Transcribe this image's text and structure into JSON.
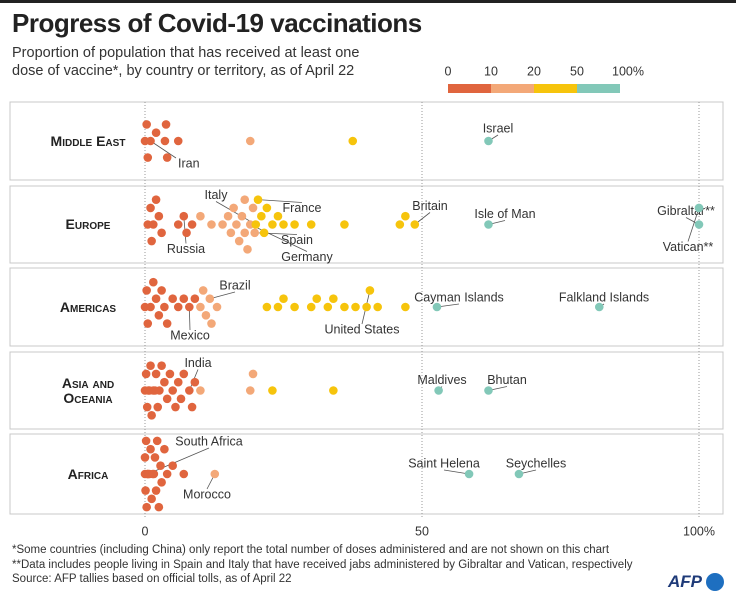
{
  "chart_data": {
    "type": "beeswarm",
    "title": "Progress of Covid-19 vaccinations",
    "subtitle": "Proportion of population that has received at least one dose of vaccine*, by country or territory, as of April 22",
    "xlim": [
      0,
      100
    ],
    "xticks": [
      0,
      50,
      {
        "value": 100,
        "label": "100%"
      }
    ],
    "grid": true,
    "color_scale": {
      "ticks": [
        0,
        10,
        20,
        50,
        {
          "value": 100,
          "label": "100%"
        }
      ],
      "colors": [
        "#e0653e",
        "#f3a878",
        "#f6c40c",
        "#82c8b8"
      ]
    },
    "groups": [
      {
        "name": "Middle East",
        "points": [
          {
            "value": 0
          },
          {
            "value": 0.5
          },
          {
            "value": 1,
            "label": "Iran"
          },
          {
            "value": 0.3
          },
          {
            "value": 2
          },
          {
            "value": 3.6
          },
          {
            "value": 4
          },
          {
            "value": 3.8
          },
          {
            "value": 6
          },
          {
            "value": 19
          },
          {
            "value": 37.5
          },
          {
            "value": 62,
            "label": "Israel"
          }
        ]
      },
      {
        "name": "Europe",
        "points": [
          {
            "value": 0.5
          },
          {
            "value": 1
          },
          {
            "value": 1.2
          },
          {
            "value": 1.5
          },
          {
            "value": 2
          },
          {
            "value": 2.5
          },
          {
            "value": 3
          },
          {
            "value": 6
          },
          {
            "value": 7,
            "label": "Russia"
          },
          {
            "value": 7.5
          },
          {
            "value": 8.5
          },
          {
            "value": 10
          },
          {
            "value": 12
          },
          {
            "value": 14
          },
          {
            "value": 15
          },
          {
            "value": 15.5
          },
          {
            "value": 16
          },
          {
            "value": 16.5
          },
          {
            "value": 17
          },
          {
            "value": 17.5
          },
          {
            "value": 18
          },
          {
            "value": 18
          },
          {
            "value": 18.5
          },
          {
            "value": 19,
            "label": "Germany"
          },
          {
            "value": 19.5
          },
          {
            "value": 20,
            "label": "Italy"
          },
          {
            "value": 20.4,
            "label": "France"
          },
          {
            "value": 19.8,
            "label": "Spain"
          },
          {
            "value": 21
          },
          {
            "value": 21.5
          },
          {
            "value": 22
          },
          {
            "value": 23
          },
          {
            "value": 24
          },
          {
            "value": 25
          },
          {
            "value": 27
          },
          {
            "value": 30
          },
          {
            "value": 36
          },
          {
            "value": 46
          },
          {
            "value": 47
          },
          {
            "value": 48.7,
            "label": "Britain"
          },
          {
            "value": 62,
            "label": "Isle of Man"
          },
          {
            "value": 100,
            "label": "Gibraltar**"
          },
          {
            "value": 100,
            "label": "Vatican**"
          }
        ]
      },
      {
        "name": "Americas",
        "points": [
          {
            "value": 0
          },
          {
            "value": 0.3
          },
          {
            "value": 0.5
          },
          {
            "value": 1
          },
          {
            "value": 1.5
          },
          {
            "value": 2
          },
          {
            "value": 2.5
          },
          {
            "value": 3
          },
          {
            "value": 3.5
          },
          {
            "value": 4
          },
          {
            "value": 5
          },
          {
            "value": 6
          },
          {
            "value": 7
          },
          {
            "value": 8,
            "label": "Mexico"
          },
          {
            "value": 9
          },
          {
            "value": 10
          },
          {
            "value": 10.5
          },
          {
            "value": 11
          },
          {
            "value": 11.7,
            "label": "Brazil"
          },
          {
            "value": 12
          },
          {
            "value": 13
          },
          {
            "value": 22
          },
          {
            "value": 24
          },
          {
            "value": 25
          },
          {
            "value": 27
          },
          {
            "value": 30
          },
          {
            "value": 31
          },
          {
            "value": 33
          },
          {
            "value": 34
          },
          {
            "value": 36
          },
          {
            "value": 38
          },
          {
            "value": 40
          },
          {
            "value": 40.6,
            "label": "United States"
          },
          {
            "value": 42
          },
          {
            "value": 47
          },
          {
            "value": 52.7,
            "label": "Cayman Islands"
          },
          {
            "value": 82,
            "label": "Falkland Islands"
          }
        ]
      },
      {
        "name": "Asia and Oceania",
        "points": [
          {
            "value": 0
          },
          {
            "value": 0.2
          },
          {
            "value": 0.4
          },
          {
            "value": 0.6
          },
          {
            "value": 0.8
          },
          {
            "value": 1
          },
          {
            "value": 1.2
          },
          {
            "value": 1.5
          },
          {
            "value": 1.8
          },
          {
            "value": 2
          },
          {
            "value": 2.3
          },
          {
            "value": 2.6
          },
          {
            "value": 3
          },
          {
            "value": 3.5
          },
          {
            "value": 4
          },
          {
            "value": 4.5
          },
          {
            "value": 5
          },
          {
            "value": 5.5
          },
          {
            "value": 6
          },
          {
            "value": 6.5
          },
          {
            "value": 7
          },
          {
            "value": 8,
            "label": "India"
          },
          {
            "value": 8.5
          },
          {
            "value": 9
          },
          {
            "value": 10
          },
          {
            "value": 19
          },
          {
            "value": 19.5
          },
          {
            "value": 23
          },
          {
            "value": 34
          },
          {
            "value": 53,
            "label": "Maldives"
          },
          {
            "value": 62,
            "label": "Bhutan"
          }
        ]
      },
      {
        "name": "Africa",
        "points": [
          {
            "value": 0
          },
          {
            "value": 0
          },
          {
            "value": 0.1
          },
          {
            "value": 0.2
          },
          {
            "value": 0.3
          },
          {
            "value": 0.4
          },
          {
            "value": 0.5,
            "label": "South Africa"
          },
          {
            "value": 0.6
          },
          {
            "value": 0.8
          },
          {
            "value": 1
          },
          {
            "value": 1.2
          },
          {
            "value": 1.4
          },
          {
            "value": 1.6
          },
          {
            "value": 1.8
          },
          {
            "value": 2
          },
          {
            "value": 2.2
          },
          {
            "value": 2.5
          },
          {
            "value": 2.8
          },
          {
            "value": 3
          },
          {
            "value": 3.5
          },
          {
            "value": 4
          },
          {
            "value": 5
          },
          {
            "value": 7
          },
          {
            "value": 12.6,
            "label": "Morocco"
          },
          {
            "value": 58.5,
            "label": "Saint Helena"
          },
          {
            "value": 67.5,
            "label": "Seychelles"
          }
        ]
      }
    ],
    "footnotes": [
      "*Some countries (including China) only report the total number of doses administered and are not shown on this chart",
      "**Data includes people living in Spain and Italy that have received jabs administered by Gibraltar and Vatican, respectively"
    ],
    "source": "Source: AFP tallies based on official tolls, as of April 22",
    "logo": "AFP"
  }
}
